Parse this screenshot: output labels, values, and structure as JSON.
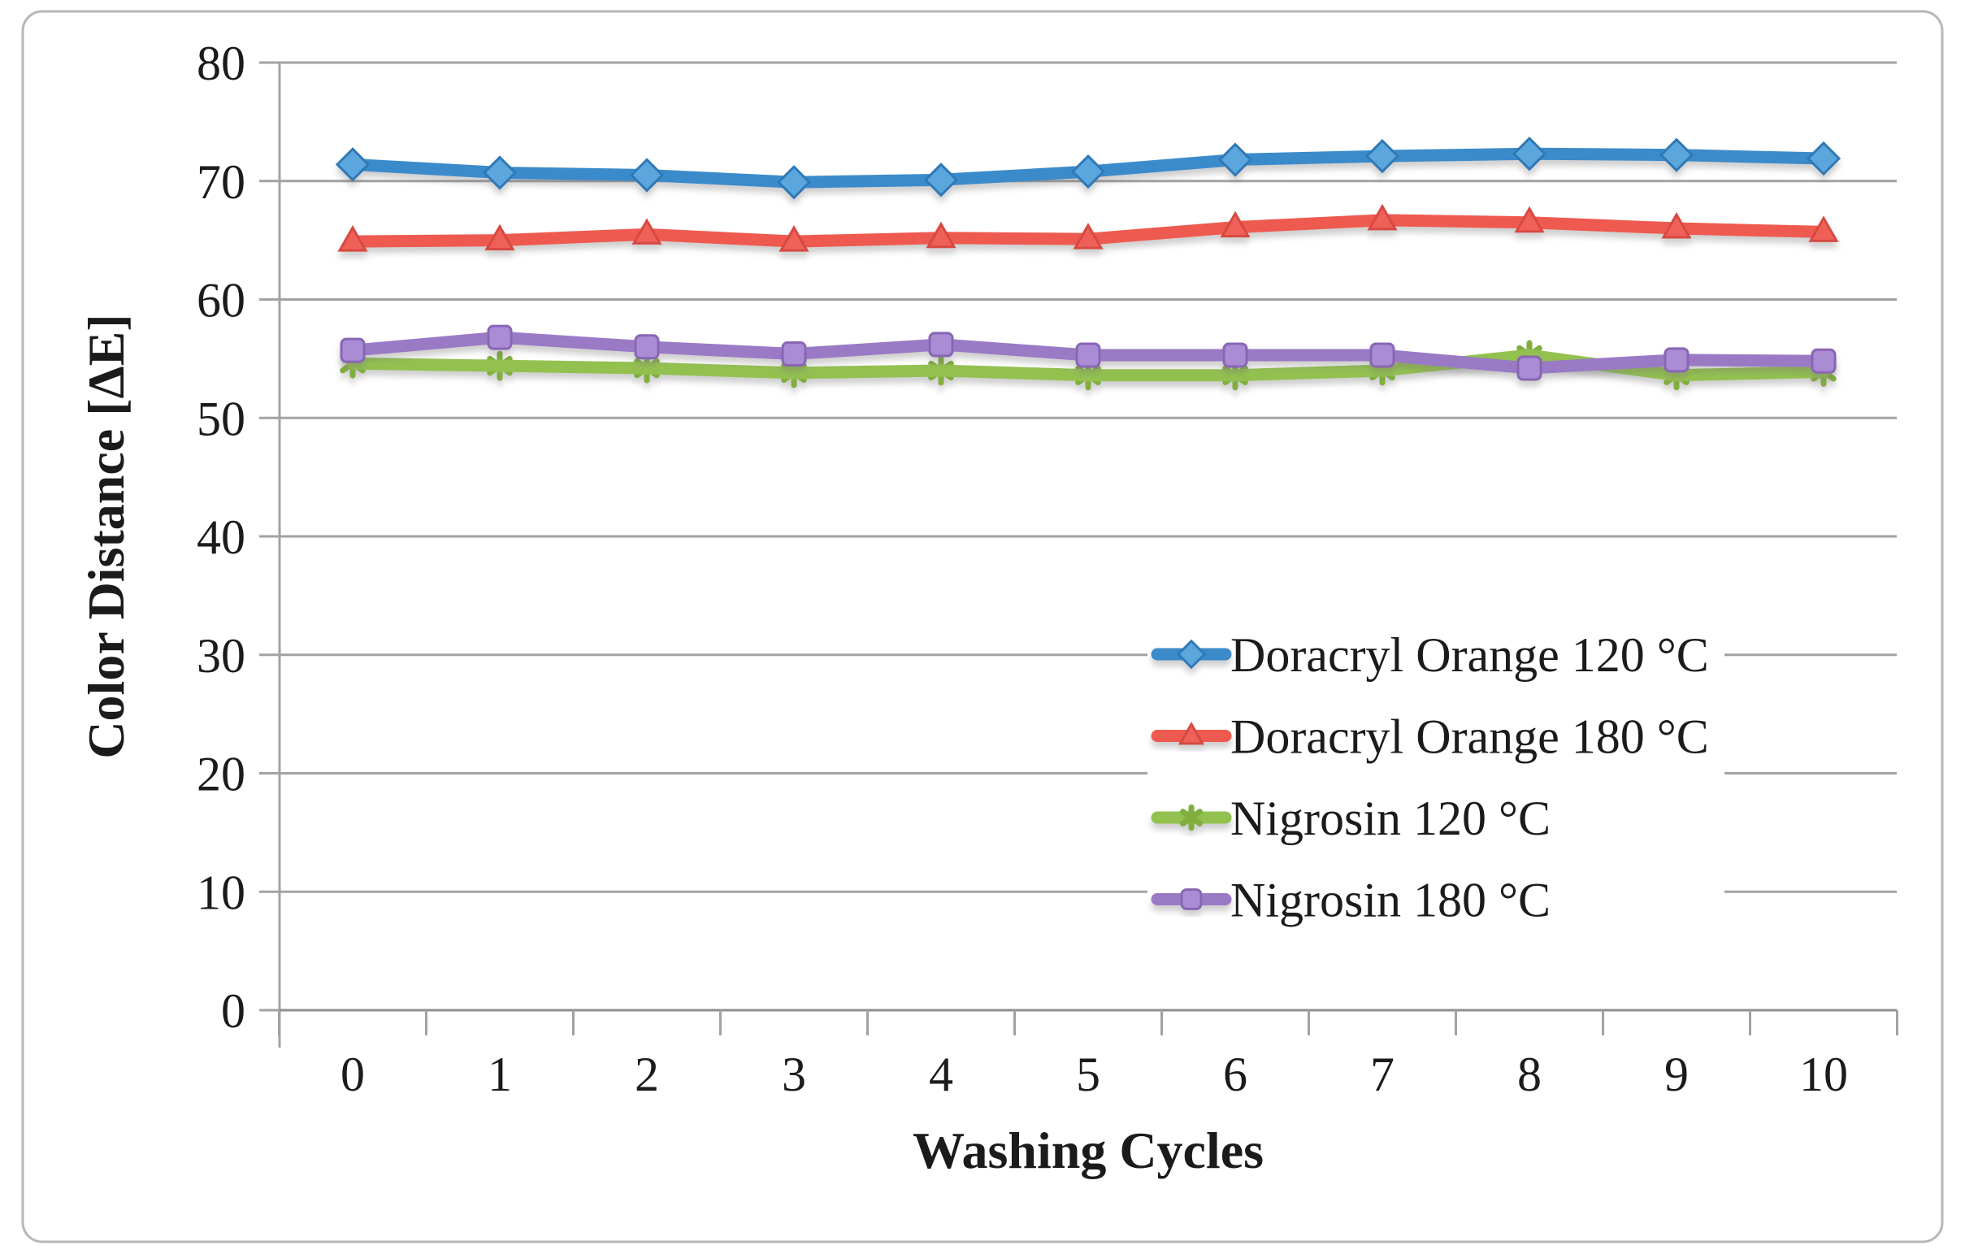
{
  "figure": {
    "background": "#ffffff",
    "frame_border_color": "#b7b7b7"
  },
  "chart_data": {
    "type": "line",
    "title": "",
    "xlabel": "Washing Cycles",
    "ylabel": "Color Distance [ΔE]",
    "categories": [
      0,
      1,
      2,
      3,
      4,
      5,
      6,
      7,
      8,
      9,
      10
    ],
    "x_tick_labels": [
      "0",
      "1",
      "2",
      "3",
      "4",
      "5",
      "6",
      "7",
      "8",
      "9",
      "10"
    ],
    "y_ticks": [
      0,
      10,
      20,
      30,
      40,
      50,
      60,
      70,
      80
    ],
    "y_tick_labels": [
      "0",
      "10",
      "20",
      "30",
      "40",
      "50",
      "60",
      "70",
      "80"
    ],
    "ylim": [
      0,
      80
    ],
    "grid": "horizontal",
    "legend_position": "inside-right",
    "axis_color": "#a2a2a2",
    "text_color": "#1b1b1b",
    "series": [
      {
        "name": "Doracryl Orange 120 °C",
        "marker": "diamond",
        "color": "#3a8bcb",
        "marker_fill": "#5ba6de",
        "marker_edge": "#2e79b6",
        "values": [
          71.4,
          70.7,
          70.5,
          69.9,
          70.1,
          70.8,
          71.8,
          72.1,
          72.3,
          72.2,
          71.9
        ]
      },
      {
        "name": "Doracryl Orange 180 °C",
        "marker": "triangle",
        "color": "#ee5a50",
        "marker_fill": "#ef6058",
        "marker_edge": "#d74940",
        "values": [
          64.9,
          65.0,
          65.5,
          64.9,
          65.2,
          65.1,
          66.1,
          66.7,
          66.5,
          66.0,
          65.7
        ]
      },
      {
        "name": "Nigrosin 120 °C",
        "marker": "asterisk",
        "color": "#93c150",
        "marker_fill": "#93c150",
        "marker_edge": "#80af3d",
        "values": [
          54.6,
          54.4,
          54.2,
          53.8,
          54.0,
          53.6,
          53.6,
          54.0,
          55.3,
          53.6,
          53.9
        ]
      },
      {
        "name": "Nigrosin 180 °C",
        "marker": "square",
        "color": "#9a7ac5",
        "marker_fill": "#aa8cd4",
        "marker_edge": "#8866b4",
        "values": [
          55.7,
          56.8,
          56.0,
          55.4,
          56.2,
          55.3,
          55.3,
          55.3,
          54.2,
          54.9,
          54.8
        ]
      }
    ]
  }
}
